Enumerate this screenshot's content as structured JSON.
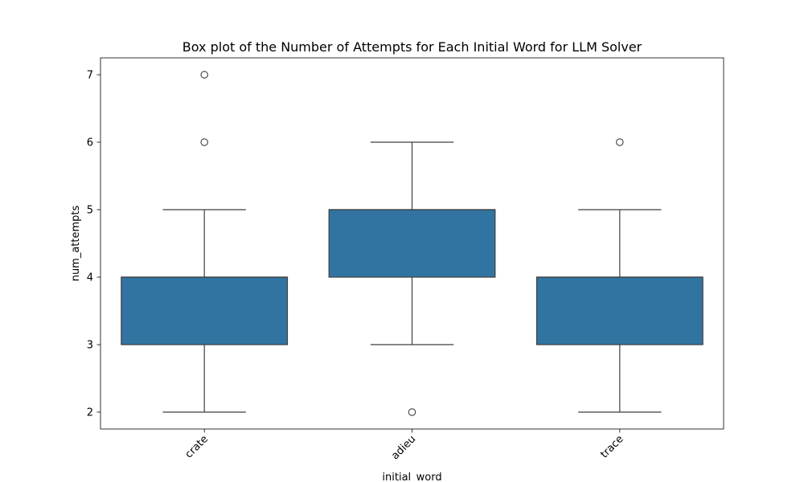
{
  "chart_data": {
    "type": "box",
    "title": "Box plot of the Number of Attempts for Each Initial Word for LLM Solver",
    "xlabel": "initial_word",
    "ylabel": "num_attempts",
    "categories": [
      "crate",
      "adieu",
      "trace"
    ],
    "ylim": [
      1.75,
      7.25
    ],
    "yticks": [
      2,
      3,
      4,
      5,
      6,
      7
    ],
    "grid": false,
    "legend": "none",
    "boxes": [
      {
        "category": "crate",
        "whisker_low": 2,
        "q1": 3,
        "median": 4,
        "q3": 4,
        "whisker_high": 5,
        "outliers": [
          6,
          7
        ]
      },
      {
        "category": "adieu",
        "whisker_low": 3,
        "q1": 4,
        "median": 5,
        "q3": 5,
        "whisker_high": 6,
        "outliers": [
          2
        ]
      },
      {
        "category": "trace",
        "whisker_low": 2,
        "q1": 3,
        "median": 4,
        "q3": 4,
        "whisker_high": 5,
        "outliers": [
          6
        ]
      }
    ],
    "box_color": "#3274a1",
    "line_color": "#3f3f3f"
  }
}
